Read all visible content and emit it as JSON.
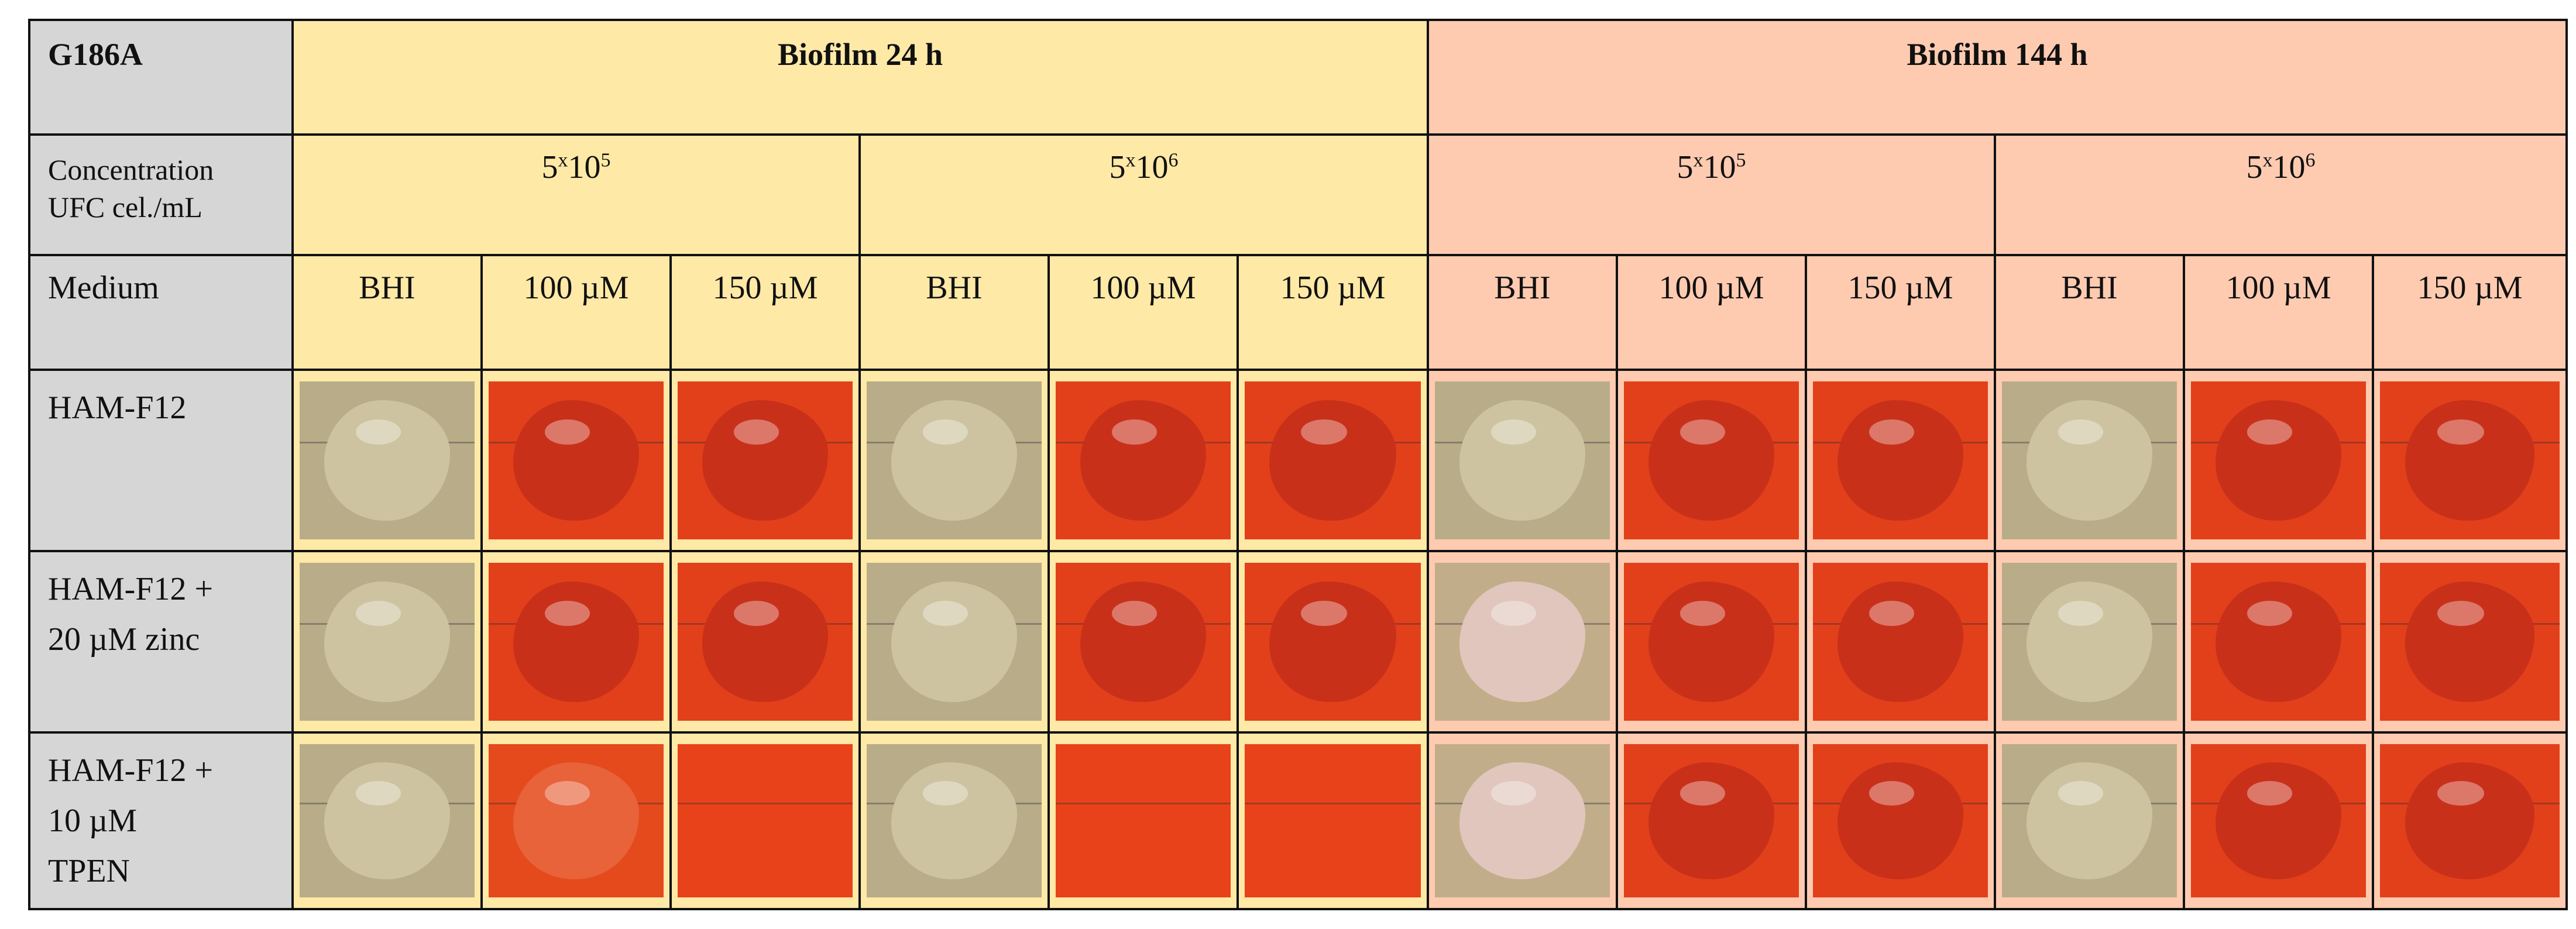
{
  "strain": "G186A",
  "groups": [
    {
      "label": "Biofilm 24 h",
      "color": "#ffe9a6"
    },
    {
      "label": "Biofilm 144 h",
      "color": "#ffcbb0"
    }
  ],
  "concentration_label": {
    "line1": "Concentration",
    "line2": "UFC cel./mL"
  },
  "concentrations": [
    {
      "base": "5",
      "x": "x",
      "ten": "10",
      "exp": "5"
    },
    {
      "base": "5",
      "x": "x",
      "ten": "10",
      "exp": "6"
    }
  ],
  "medium_label": "Medium",
  "media": [
    "BHI",
    "100 µM",
    "150 µM"
  ],
  "rows": [
    {
      "lines": [
        "HAM-F12"
      ],
      "photos": [
        "tan",
        "red",
        "red",
        "tan",
        "red",
        "red",
        "tan",
        "red",
        "red",
        "tan",
        "red",
        "red"
      ]
    },
    {
      "lines": [
        "HAM-F12 +",
        "20 µM zinc"
      ],
      "photos": [
        "tan",
        "red",
        "red",
        "tan",
        "red",
        "red",
        "pink",
        "red",
        "red",
        "tan",
        "red",
        "red"
      ]
    },
    {
      "lines": [
        "HAM-F12 +",
        "10 µM",
        "TPEN"
      ],
      "photos": [
        "tan",
        "faint",
        "flat",
        "tan",
        "flat",
        "flat",
        "pink",
        "red",
        "red",
        "tan",
        "red",
        "red"
      ]
    }
  ],
  "photo_colors": {
    "tan": {
      "bg": "#b8ad88",
      "blob": "#cdc3a0"
    },
    "pink": {
      "bg": "#c2ad8a",
      "blob": "#e0c6bc"
    },
    "red": {
      "bg": "#e2401a",
      "blob": "#c9301a"
    },
    "faint": {
      "bg": "#e44a1c",
      "blob": "#e8623a"
    },
    "flat": {
      "bg": "#e8421a",
      "blob": "transparent"
    }
  }
}
